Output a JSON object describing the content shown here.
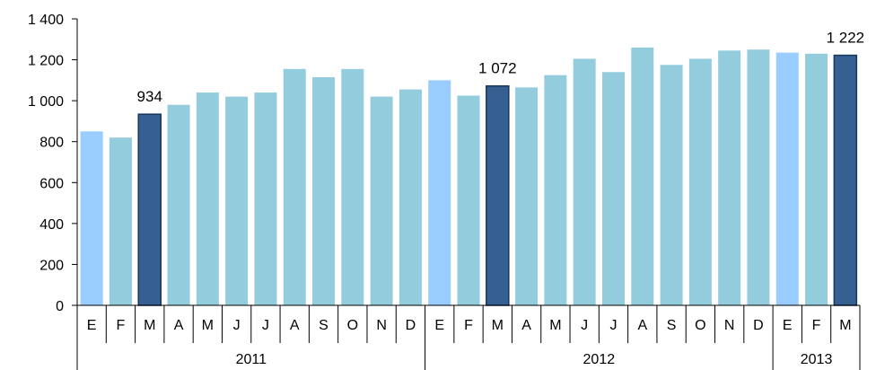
{
  "chart_data": {
    "type": "bar",
    "title": "",
    "xlabel": "",
    "ylabel": "",
    "ylim": [
      0,
      1400
    ],
    "yticks": [
      0,
      200,
      400,
      600,
      800,
      1000,
      1200,
      1400
    ],
    "ytick_labels": [
      "0",
      "200",
      "400",
      "600",
      "800",
      "1 000",
      "1 200",
      "1 400"
    ],
    "grid": false,
    "legend": "none",
    "categories": [
      "E",
      "F",
      "M",
      "A",
      "M",
      "J",
      "J",
      "A",
      "S",
      "O",
      "N",
      "D",
      "E",
      "F",
      "M",
      "A",
      "M",
      "J",
      "J",
      "A",
      "S",
      "O",
      "N",
      "D",
      "E",
      "F",
      "M"
    ],
    "values": [
      850,
      820,
      934,
      980,
      1040,
      1020,
      1040,
      1155,
      1115,
      1155,
      1020,
      1055,
      1100,
      1025,
      1072,
      1065,
      1125,
      1205,
      1140,
      1260,
      1175,
      1205,
      1245,
      1250,
      1235,
      1230,
      1222
    ],
    "bar_kind": [
      "jan",
      "reg",
      "mar",
      "reg",
      "reg",
      "reg",
      "reg",
      "reg",
      "reg",
      "reg",
      "reg",
      "reg",
      "jan",
      "reg",
      "mar",
      "reg",
      "reg",
      "reg",
      "reg",
      "reg",
      "reg",
      "reg",
      "reg",
      "reg",
      "jan",
      "reg",
      "mar"
    ],
    "data_labels": [
      {
        "index": 2,
        "text": "934"
      },
      {
        "index": 14,
        "text": "1 072"
      },
      {
        "index": 26,
        "text": "1 222"
      }
    ],
    "groups": [
      {
        "label": "2011",
        "start": 0,
        "count": 12
      },
      {
        "label": "2012",
        "start": 12,
        "count": 12
      },
      {
        "label": "2013",
        "start": 24,
        "count": 3
      }
    ],
    "colors": {
      "reg_fill": "#93CDDD",
      "jan_fill": "#99CCFF",
      "mar_fill": "#366092",
      "mar_edge": "#17365D",
      "axis": "#000000"
    }
  }
}
